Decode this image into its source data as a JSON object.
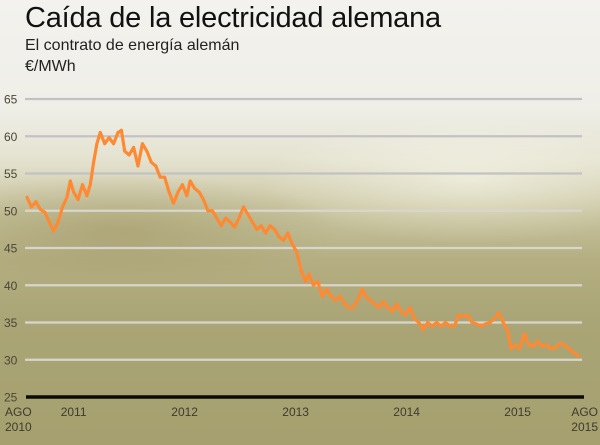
{
  "chart_data": {
    "type": "line",
    "title": "Caída de la electricidad alemana",
    "subtitle": "El contrato de energía alemán",
    "ylabel": "€/MWh",
    "xlabel": "",
    "ylim": [
      25,
      65
    ],
    "xlim": [
      2010.58,
      2015.58
    ],
    "yticks": [
      65,
      60,
      55,
      50,
      45,
      40,
      35,
      30,
      25
    ],
    "xticks": [
      {
        "value": 2010.58,
        "line1": "AGO",
        "line2": "2010"
      },
      {
        "value": 2011.0,
        "line1": "2011",
        "line2": ""
      },
      {
        "value": 2012.0,
        "line1": "2012",
        "line2": ""
      },
      {
        "value": 2013.0,
        "line1": "2013",
        "line2": ""
      },
      {
        "value": 2014.0,
        "line1": "2014",
        "line2": ""
      },
      {
        "value": 2015.0,
        "line1": "2015",
        "line2": ""
      },
      {
        "value": 2015.58,
        "line1": "AGO",
        "line2": "2015"
      }
    ],
    "grid": true,
    "line_color": "#ff8a33",
    "series": [
      {
        "name": "Contrato de energía alemán",
        "x": [
          2010.58,
          2010.62,
          2010.66,
          2010.7,
          2010.74,
          2010.78,
          2010.82,
          2010.86,
          2010.9,
          2010.94,
          2010.97,
          2011.0,
          2011.04,
          2011.08,
          2011.12,
          2011.15,
          2011.18,
          2011.21,
          2011.24,
          2011.28,
          2011.32,
          2011.36,
          2011.4,
          2011.43,
          2011.46,
          2011.5,
          2011.54,
          2011.58,
          2011.62,
          2011.66,
          2011.7,
          2011.74,
          2011.78,
          2011.82,
          2011.86,
          2011.9,
          2011.94,
          2011.98,
          2012.02,
          2012.05,
          2012.09,
          2012.13,
          2012.17,
          2012.21,
          2012.25,
          2012.29,
          2012.33,
          2012.37,
          2012.41,
          2012.45,
          2012.49,
          2012.53,
          2012.57,
          2012.61,
          2012.65,
          2012.69,
          2012.73,
          2012.77,
          2012.81,
          2012.85,
          2012.89,
          2012.93,
          2012.97,
          2013.01,
          2013.05,
          2013.09,
          2013.12,
          2013.16,
          2013.2,
          2013.24,
          2013.28,
          2013.32,
          2013.36,
          2013.4,
          2013.44,
          2013.48,
          2013.52,
          2013.56,
          2013.6,
          2013.63,
          2013.67,
          2013.71,
          2013.75,
          2013.79,
          2013.83,
          2013.87,
          2013.91,
          2013.95,
          2013.99,
          2014.03,
          2014.07,
          2014.11,
          2014.15,
          2014.19,
          2014.23,
          2014.27,
          2014.31,
          2014.35,
          2014.39,
          2014.43,
          2014.47,
          2014.51,
          2014.55,
          2014.59,
          2014.63,
          2014.67,
          2014.71,
          2014.75,
          2014.79,
          2014.83,
          2014.87,
          2014.91,
          2014.94,
          2014.98,
          2015.02,
          2015.06,
          2015.1,
          2015.14,
          2015.18,
          2015.22,
          2015.26,
          2015.3,
          2015.34,
          2015.38,
          2015.42,
          2015.46,
          2015.5,
          2015.55
        ],
        "values": [
          51.8,
          50.5,
          51.2,
          50.2,
          49.8,
          48.5,
          47.3,
          48.5,
          50.5,
          51.8,
          54,
          52.5,
          51.5,
          53.5,
          52,
          53.5,
          56.5,
          59,
          60.5,
          59,
          59.8,
          59,
          60.5,
          60.8,
          58,
          57.5,
          58.5,
          56,
          59,
          58,
          56.5,
          56,
          54.5,
          54.5,
          52.5,
          51,
          52.5,
          53.5,
          52,
          54,
          53,
          52.5,
          51.5,
          50,
          50,
          49,
          48,
          49,
          48.5,
          47.8,
          49,
          50.5,
          49.5,
          48.5,
          47.5,
          48,
          47,
          48,
          47.5,
          46.5,
          46,
          47,
          45.5,
          44.5,
          42,
          40.5,
          41.5,
          40,
          40.5,
          38.5,
          39.5,
          38.5,
          38,
          38.5,
          37.5,
          37,
          37,
          38,
          39.5,
          38.5,
          38,
          37.5,
          37,
          37.8,
          37,
          36.5,
          37.5,
          36.5,
          36,
          37,
          35.5,
          35,
          34,
          35,
          34.5,
          35,
          34.5,
          35,
          34.5,
          34.5,
          36,
          35.8,
          36,
          35,
          34.8,
          34.5,
          34.8,
          35,
          35.5,
          36.3,
          35,
          34,
          31.5,
          32,
          31.5,
          33.5,
          32,
          31.8,
          32.5,
          31.8,
          32,
          31.5,
          31.6,
          32.2,
          32,
          31.5,
          31,
          30.5
        ]
      }
    ]
  }
}
